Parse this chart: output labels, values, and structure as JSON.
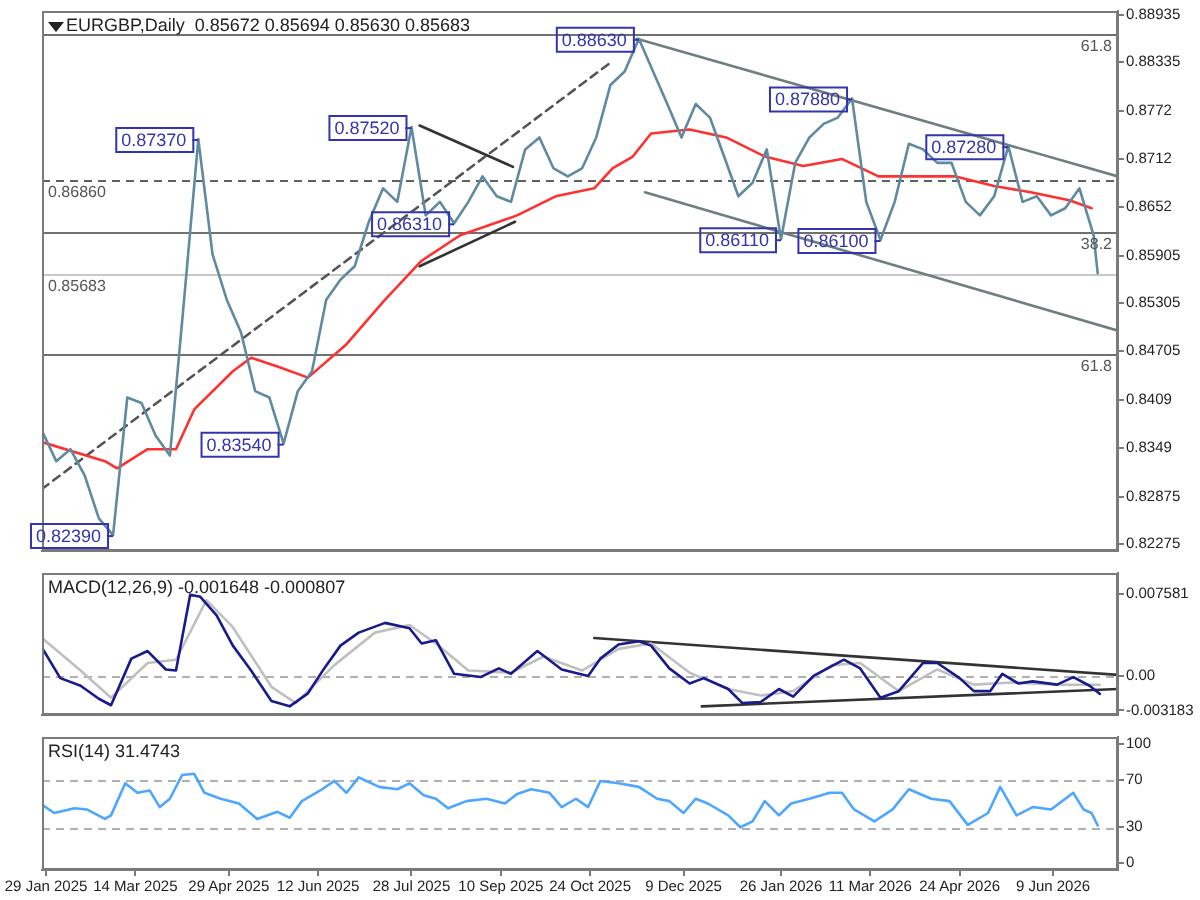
{
  "chart_data": [
    {
      "type": "line",
      "title": "EURGBP,Daily  0.85672 0.85694 0.85630 0.85683",
      "xlim": [
        "2025-01-27",
        "2026-07-11"
      ],
      "ylim": [
        0.8219,
        0.8898
      ],
      "yticks": [
        0.88935,
        0.88335,
        0.8772,
        0.8712,
        0.8652,
        0.85905,
        0.85305,
        0.84705,
        0.8409,
        0.8349,
        0.82875,
        0.82275
      ],
      "tick_labels": "y",
      "marker": "none",
      "series": [
        {
          "color": "#5f8aa0",
          "x": [
            "2025-01-27",
            "2025-02-03",
            "2025-02-10",
            "2025-02-17",
            "2025-02-24",
            "2025-03-03",
            "2025-03-10",
            "2025-03-17",
            "2025-03-24",
            "2025-03-31",
            "2025-04-07",
            "2025-04-14",
            "2025-04-21",
            "2025-04-28",
            "2025-05-05",
            "2025-05-12",
            "2025-05-19",
            "2025-05-26",
            "2025-06-02",
            "2025-06-09",
            "2025-06-16",
            "2025-06-23",
            "2025-06-30",
            "2025-07-07",
            "2025-07-14",
            "2025-07-21",
            "2025-07-28",
            "2025-08-04",
            "2025-08-11",
            "2025-08-18",
            "2025-08-25",
            "2025-09-01",
            "2025-09-08",
            "2025-09-15",
            "2025-09-22",
            "2025-09-29",
            "2025-10-06",
            "2025-10-13",
            "2025-10-20",
            "2025-10-27",
            "2025-11-03",
            "2025-11-10",
            "2025-11-17",
            "2025-11-24",
            "2025-12-01",
            "2025-12-08",
            "2025-12-15",
            "2025-12-22",
            "2025-12-29",
            "2026-01-05",
            "2026-01-12",
            "2026-01-19",
            "2026-01-26",
            "2026-02-02",
            "2026-02-09",
            "2026-02-16",
            "2026-02-23",
            "2026-03-02",
            "2026-03-09",
            "2026-03-16",
            "2026-03-23",
            "2026-03-30",
            "2026-04-06",
            "2026-04-13",
            "2026-04-20",
            "2026-04-27",
            "2026-05-04",
            "2026-05-11",
            "2026-05-18",
            "2026-05-25",
            "2026-06-01",
            "2026-06-08",
            "2026-06-15",
            "2026-06-22",
            "2026-06-29",
            "2026-07-01"
          ],
          "values": [
            0.837,
            0.8332,
            0.8347,
            0.8314,
            0.826,
            0.8239,
            0.8412,
            0.8405,
            0.8364,
            0.8339,
            0.8535,
            0.8737,
            0.8592,
            0.8535,
            0.8494,
            0.842,
            0.8412,
            0.8354,
            0.842,
            0.8445,
            0.8535,
            0.856,
            0.8577,
            0.8633,
            0.8675,
            0.8658,
            0.8752,
            0.8641,
            0.8658,
            0.8631,
            0.8658,
            0.869,
            0.8665,
            0.8658,
            0.8724,
            0.8739,
            0.87,
            0.869,
            0.87,
            0.8739,
            0.8805,
            0.8822,
            0.8863,
            0.8822,
            0.8781,
            0.8739,
            0.8781,
            0.8764,
            0.8715,
            0.8665,
            0.8682,
            0.8724,
            0.8611,
            0.8707,
            0.8739,
            0.8756,
            0.8764,
            0.8788,
            0.8658,
            0.861,
            0.8658,
            0.8731,
            0.8724,
            0.8707,
            0.8707,
            0.8658,
            0.8641,
            0.8665,
            0.8728,
            0.8658,
            0.8665,
            0.8641,
            0.865,
            0.8675,
            0.8616,
            0.85683
          ]
        },
        {
          "color": "#ff3030",
          "x": [
            "2025-01-27",
            "2025-02-27",
            "2025-03-05",
            "2025-03-20",
            "2025-04-03",
            "2025-04-12",
            "2025-05-01",
            "2025-05-10",
            "2025-05-24",
            "2025-06-07",
            "2025-06-26",
            "2025-07-15",
            "2025-08-02",
            "2025-08-21",
            "2025-09-18",
            "2025-10-07",
            "2025-10-26",
            "2025-11-04",
            "2025-11-14",
            "2025-11-23",
            "2025-12-12",
            "2025-12-30",
            "2026-01-18",
            "2026-02-06",
            "2026-02-25",
            "2026-03-15",
            "2026-04-03",
            "2026-04-22",
            "2026-05-11",
            "2026-05-29",
            "2026-06-17",
            "2026-06-28"
          ],
          "values": [
            0.8356,
            0.8332,
            0.8323,
            0.8347,
            0.8347,
            0.8397,
            0.8445,
            0.8462,
            0.845,
            0.8437,
            0.8479,
            0.8535,
            0.8584,
            0.8616,
            0.8641,
            0.8665,
            0.8675,
            0.87,
            0.8715,
            0.8744,
            0.8749,
            0.8739,
            0.8715,
            0.8703,
            0.8712,
            0.869,
            0.869,
            0.869,
            0.8678,
            0.867,
            0.866,
            0.865
          ]
        },
        {
          "color": "#555555",
          "line_style": "dashed",
          "x": [
            "2025-01-27",
            "2025-11-04"
          ],
          "values": [
            0.8297,
            0.8835
          ]
        },
        {
          "color": "#6f7f80",
          "x": [
            "2025-11-16",
            "2026-07-11"
          ],
          "values": [
            0.8863,
            0.869
          ]
        },
        {
          "color": "#6f7f80",
          "x": [
            "2025-11-20",
            "2026-07-11"
          ],
          "values": [
            0.867,
            0.8496
          ]
        },
        {
          "color": "#333333",
          "x": [
            "2025-08-01",
            "2025-09-16"
          ],
          "values": [
            0.8754,
            0.8702
          ]
        },
        {
          "color": "#333333",
          "x": [
            "2025-08-01",
            "2025-09-17"
          ],
          "values": [
            0.8577,
            0.8633
          ]
        }
      ],
      "ref_lines": [
        {
          "axis": "y",
          "value": 0.8869,
          "color": "#707070"
        },
        {
          "axis": "y",
          "value": 0.8686,
          "label": "0.86860",
          "color": "#606060",
          "line_style": "dashed"
        },
        {
          "axis": "y",
          "value": 0.8619,
          "color": "#707070"
        },
        {
          "axis": "y",
          "value": 0.85683,
          "label": "0.85683",
          "color": "#c8c8c8"
        },
        {
          "axis": "y",
          "value": 0.8466,
          "color": "#707070"
        }
      ],
      "annotations": [
        {
          "text": "61.8",
          "y": 0.8869
        },
        {
          "text": "38.2",
          "y": 0.8619
        },
        {
          "text": "61.8",
          "y": 0.8466
        },
        {
          "text": "0.82390",
          "x": "2025-03-03",
          "y": 0.8239
        },
        {
          "text": "0.87370",
          "x": "2025-04-14",
          "y": 0.8737
        },
        {
          "text": "0.83540",
          "x": "2025-05-26",
          "y": 0.8354
        },
        {
          "text": "0.87520",
          "x": "2025-07-28",
          "y": 0.8752
        },
        {
          "text": "0.86310",
          "x": "2025-08-18",
          "y": 0.8631
        },
        {
          "text": "0.88630",
          "x": "2025-11-17",
          "y": 0.8863
        },
        {
          "text": "0.86110",
          "x": "2026-01-26",
          "y": 0.8611
        },
        {
          "text": "0.87880",
          "x": "2026-03-02",
          "y": 0.8788
        },
        {
          "text": "0.86100",
          "x": "2026-03-16",
          "y": 0.861
        },
        {
          "text": "0.87280",
          "x": "2026-05-18",
          "y": 0.8728
        }
      ]
    },
    {
      "type": "line",
      "title": "MACD(12,26,9) -0.001648 -0.000807",
      "xlim": [
        "2025-01-27",
        "2026-07-11"
      ],
      "ylim": [
        -0.0036,
        0.0095
      ],
      "yticks": [
        0.007581,
        {
          "value": 0,
          "label": "0.00"
        },
        -0.003183
      ],
      "tick_labels": "y",
      "marker": "none",
      "series": [
        {
          "color": "#1a1a8c",
          "x": [
            "2025-01-27",
            "2025-02-05",
            "2025-02-15",
            "2025-02-24",
            "2025-03-02",
            "2025-03-12",
            "2025-03-20",
            "2025-03-29",
            "2025-04-03",
            "2025-04-10",
            "2025-04-15",
            "2025-04-23",
            "2025-05-01",
            "2025-05-10",
            "2025-05-20",
            "2025-05-29",
            "2025-06-07",
            "2025-06-15",
            "2025-06-23",
            "2025-07-02",
            "2025-07-15",
            "2025-07-27",
            "2025-08-02",
            "2025-08-09",
            "2025-08-18",
            "2025-08-31",
            "2025-09-09",
            "2025-09-15",
            "2025-09-28",
            "2025-10-10",
            "2025-10-23",
            "2025-10-29",
            "2025-11-07",
            "2025-11-17",
            "2025-11-23",
            "2025-12-02",
            "2025-12-12",
            "2025-12-19",
            "2025-12-31",
            "2026-01-07",
            "2026-01-16",
            "2026-01-25",
            "2026-02-01",
            "2026-02-11",
            "2026-02-26",
            "2026-03-06",
            "2026-03-16",
            "2026-03-25",
            "2026-04-06",
            "2026-04-13",
            "2026-04-24",
            "2026-05-01",
            "2026-05-09",
            "2026-05-15",
            "2026-05-23",
            "2026-05-30",
            "2026-06-11",
            "2026-06-19",
            "2026-06-27",
            "2026-07-02"
          ],
          "values": [
            0.0026,
            -0.0002,
            -0.0009,
            -0.0021,
            -0.0027,
            0.0016,
            0.0023,
            0.0006,
            0.0005,
            0.0075,
            0.0073,
            0.0056,
            0.0028,
            0.0005,
            -0.0023,
            -0.0028,
            -0.0016,
            0.0007,
            0.0028,
            0.004,
            0.0049,
            0.0044,
            0.003,
            0.0033,
            0.0002,
            -0.0001,
            0.0007,
            0.0002,
            0.0023,
            0.0006,
            0,
            0.0016,
            0.0029,
            0.0032,
            0.0028,
            0.0007,
            -0.0007,
            -0.0002,
            -0.0012,
            -0.0025,
            -0.0024,
            -0.0012,
            -0.0019,
            0,
            0.0015,
            0.0007,
            -0.002,
            -0.0014,
            0.0012,
            0.0012,
            -0.0002,
            -0.0014,
            -0.0014,
            0.0002,
            -0.0007,
            -0.0005,
            -0.0008,
            -0.0001,
            -0.0009,
            -0.001648
          ]
        },
        {
          "color": "#c0c0c0",
          "x": [
            "2025-01-27",
            "2025-02-15",
            "2025-03-02",
            "2025-03-20",
            "2025-04-03",
            "2025-04-18",
            "2025-05-01",
            "2025-05-20",
            "2025-06-01",
            "2025-06-20",
            "2025-07-10",
            "2025-07-27",
            "2025-08-09",
            "2025-08-25",
            "2025-09-15",
            "2025-10-01",
            "2025-10-20",
            "2025-11-07",
            "2025-11-23",
            "2025-12-12",
            "2025-12-31",
            "2026-01-16",
            "2026-02-01",
            "2026-02-20",
            "2026-03-06",
            "2026-03-25",
            "2026-04-13",
            "2026-05-01",
            "2026-05-20",
            "2026-06-11",
            "2026-07-02"
          ],
          "values": [
            0.0035,
            0.0005,
            -0.002,
            0.0012,
            0.0015,
            0.007,
            0.0045,
            -0.001,
            -0.0025,
            0.001,
            0.004,
            0.0047,
            0.003,
            0.0005,
            0.0003,
            0.0018,
            0.0005,
            0.0025,
            0.003,
            0.0003,
            -0.0012,
            -0.0018,
            -0.0014,
            0.001,
            0.0012,
            -0.0014,
            0.0006,
            -0.0008,
            -0.0006,
            -0.0008,
            -0.000807
          ]
        },
        {
          "color": "#333333",
          "x": [
            "2025-10-26",
            "2026-07-11"
          ],
          "values": [
            0.0035,
            0.0001
          ]
        },
        {
          "color": "#333333",
          "x": [
            "2025-12-18",
            "2026-07-11"
          ],
          "values": [
            -0.0028,
            -0.0012
          ]
        }
      ],
      "ref_lines": [
        {
          "axis": "y",
          "value": 0,
          "color": "#b0b0b0",
          "line_style": "dashed"
        }
      ]
    },
    {
      "type": "line",
      "title": "RSI(14) 31.4743",
      "xlim": [
        "2025-01-27",
        "2026-07-11"
      ],
      "ylim": [
        -6,
        106
      ],
      "yticks": [
        100,
        70,
        30,
        0
      ],
      "xticks": [
        {
          "value": "2025-01-29",
          "label": "29 Jan 2025"
        },
        {
          "value": "2025-03-14",
          "label": "14 Mar 2025"
        },
        {
          "value": "2025-04-29",
          "label": "29 Apr 2025"
        },
        {
          "value": "2025-06-12",
          "label": "12 Jun 2025"
        },
        {
          "value": "2025-07-28",
          "label": "28 Jul 2025"
        },
        {
          "value": "2025-09-10",
          "label": "10 Sep 2025"
        },
        {
          "value": "2025-10-24",
          "label": "24 Oct 2025"
        },
        {
          "value": "2025-12-09",
          "label": "9 Dec 2025"
        },
        {
          "value": "2026-01-26",
          "label": "26 Jan 2026"
        },
        {
          "value": "2026-03-11",
          "label": "11 Mar 2026"
        },
        {
          "value": "2026-04-24",
          "label": "24 Apr 2026"
        },
        {
          "value": "2026-06-09",
          "label": "9 Jun 2026"
        }
      ],
      "marker": "none",
      "series": [
        {
          "color": "#4da6ff",
          "x": [
            "2025-01-27",
            "2025-02-02",
            "2025-02-12",
            "2025-02-18",
            "2025-02-27",
            "2025-03-02",
            "2025-03-09",
            "2025-03-15",
            "2025-03-21",
            "2025-03-26",
            "2025-03-31",
            "2025-04-06",
            "2025-04-12",
            "2025-04-17",
            "2025-04-25",
            "2025-05-04",
            "2025-05-13",
            "2025-05-23",
            "2025-05-29",
            "2025-06-04",
            "2025-06-14",
            "2025-06-20",
            "2025-06-26",
            "2025-07-02",
            "2025-07-12",
            "2025-07-21",
            "2025-07-27",
            "2025-08-03",
            "2025-08-09",
            "2025-08-15",
            "2025-08-24",
            "2025-09-03",
            "2025-09-12",
            "2025-09-18",
            "2025-09-25",
            "2025-10-04",
            "2025-10-10",
            "2025-10-17",
            "2025-10-23",
            "2025-10-29",
            "2025-11-07",
            "2025-11-17",
            "2025-11-26",
            "2025-12-02",
            "2025-12-09",
            "2025-12-15",
            "2025-12-21",
            "2025-12-31",
            "2026-01-06",
            "2026-01-12",
            "2026-01-18",
            "2026-01-25",
            "2026-01-31",
            "2026-02-09",
            "2026-02-19",
            "2026-02-25",
            "2026-03-03",
            "2026-03-13",
            "2026-03-22",
            "2026-03-30",
            "2026-04-10",
            "2026-04-19",
            "2026-04-28",
            "2026-05-08",
            "2026-05-14",
            "2026-05-22",
            "2026-05-30",
            "2026-06-08",
            "2026-06-19",
            "2026-06-24",
            "2026-06-28",
            "2026-07-01"
          ],
          "values": [
            49,
            42,
            46,
            45,
            37,
            40,
            67,
            59,
            61,
            47,
            54,
            74,
            75,
            59,
            54,
            50,
            37,
            43,
            38,
            52,
            62,
            69,
            59,
            72,
            64,
            62,
            67,
            57,
            54,
            46,
            52,
            54,
            50,
            58,
            62,
            59,
            47,
            54,
            47,
            69,
            67,
            64,
            54,
            52,
            42,
            54,
            50,
            40,
            30,
            35,
            52,
            40,
            50,
            54,
            59,
            59,
            45,
            35,
            45,
            62,
            54,
            52,
            32,
            42,
            64,
            40,
            47,
            45,
            59,
            45,
            42,
            31.4743
          ]
        }
      ],
      "ref_lines": [
        {
          "axis": "y",
          "value": 70,
          "color": "#b0b0b0",
          "line_style": "dashed"
        },
        {
          "axis": "y",
          "value": 30,
          "color": "#b0b0b0",
          "line_style": "dashed"
        }
      ]
    }
  ]
}
